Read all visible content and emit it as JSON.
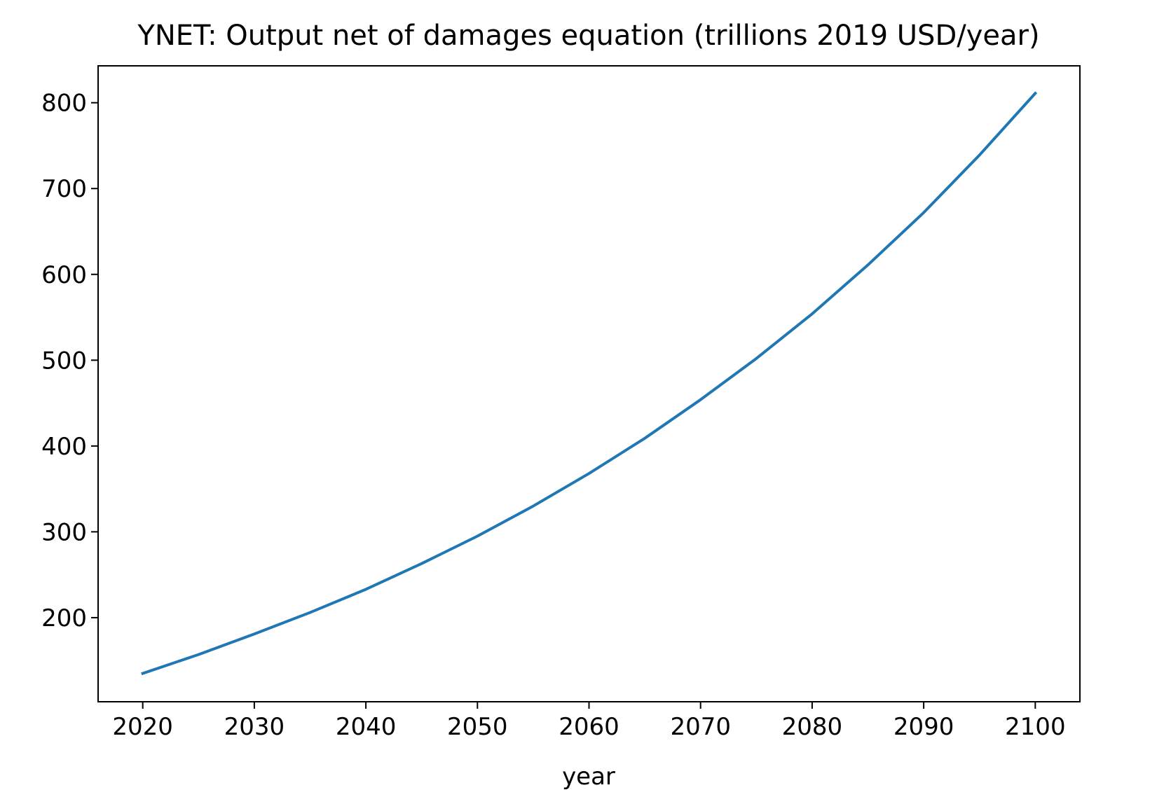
{
  "chart_data": {
    "type": "line",
    "title": "YNET: Output net of damages equation (trillions 2019 USD/year)",
    "xlabel": "year",
    "ylabel": "",
    "xlim": [
      2016,
      2104
    ],
    "ylim": [
      102,
      843
    ],
    "xticks": [
      2020,
      2030,
      2040,
      2050,
      2060,
      2070,
      2080,
      2090,
      2100
    ],
    "yticks": [
      200,
      300,
      400,
      500,
      600,
      700,
      800
    ],
    "grid": false,
    "legend": "none",
    "colors": {
      "line": "#1f77b4",
      "axes": "#000000",
      "background": "#ffffff"
    },
    "series": [
      {
        "x": [
          2020,
          2025,
          2030,
          2035,
          2040,
          2045,
          2050,
          2055,
          2060,
          2065,
          2070,
          2075,
          2080,
          2085,
          2090,
          2095,
          2100
        ],
        "values": [
          135,
          157,
          181,
          206,
          233,
          263,
          295,
          330,
          368,
          409,
          454,
          502,
          554,
          611,
          672,
          739,
          811
        ]
      }
    ]
  }
}
